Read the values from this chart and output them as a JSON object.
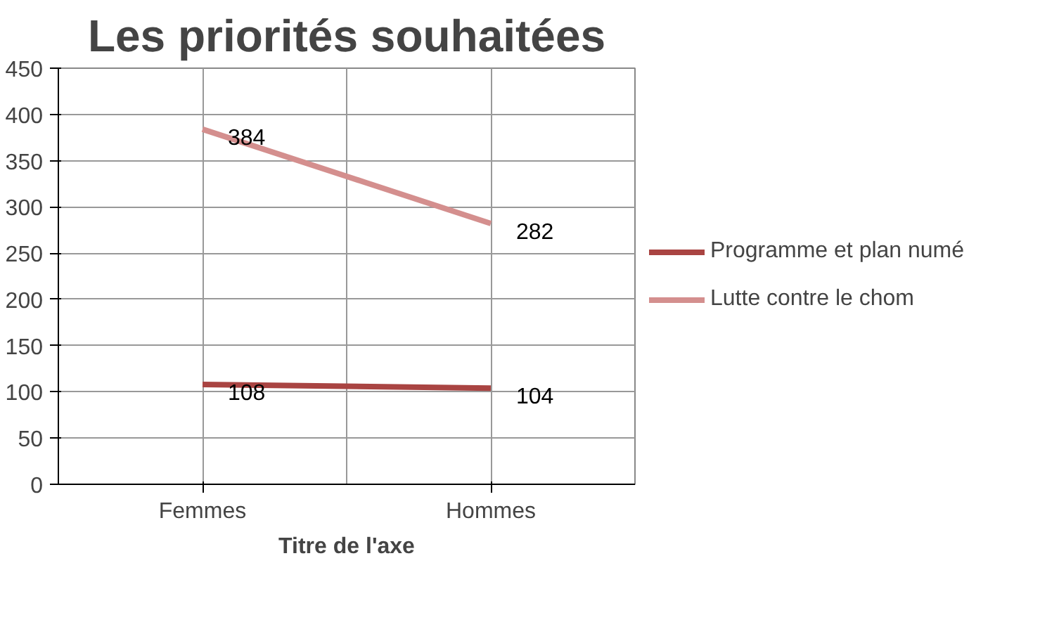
{
  "chart_data": {
    "type": "line",
    "title": "Les priorités souhaitées",
    "xlabel": "Titre de l'axe",
    "categories": [
      "Femmes",
      "Hommes"
    ],
    "series": [
      {
        "name": "Programme et plan numé",
        "color": "#a94442",
        "values": [
          108,
          104
        ]
      },
      {
        "name": "Lutte contre le chom",
        "color": "#d48f8e",
        "values": [
          384,
          282
        ]
      }
    ],
    "ylim": [
      0,
      450
    ],
    "yticks": [
      0,
      50,
      100,
      150,
      200,
      250,
      300,
      350,
      400,
      450
    ],
    "grid": true,
    "legend": "right",
    "data_labels": true,
    "marker": "none",
    "line_style": "solid"
  }
}
